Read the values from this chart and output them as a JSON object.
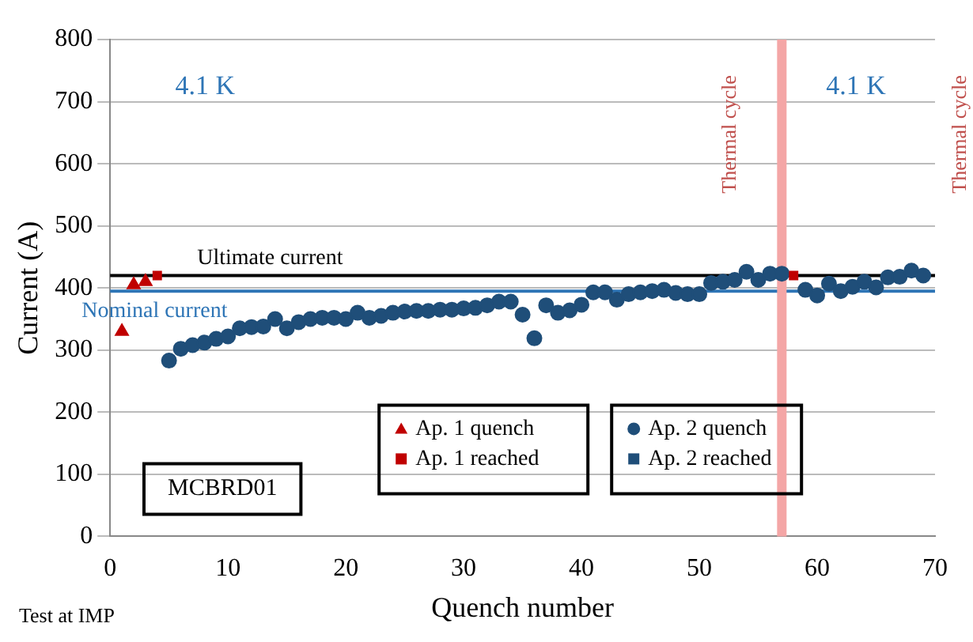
{
  "chart_data": {
    "type": "scatter",
    "xlabel": "Quench number",
    "ylabel": "Current (A)",
    "xlim": [
      0,
      70
    ],
    "xticks": [
      0,
      10,
      20,
      30,
      40,
      50,
      60,
      70
    ],
    "ylim": [
      0,
      800
    ],
    "yticks": [
      0,
      100,
      200,
      300,
      400,
      500,
      600,
      700,
      800
    ],
    "grid": "y",
    "legend": "bottom",
    "series": [
      {
        "name": "Ap. 1 quench",
        "color": "#c00000",
        "marker": "triangle",
        "x": [
          1,
          2,
          3
        ],
        "values": [
          330,
          405,
          410
        ]
      },
      {
        "name": "Ap. 1 reached",
        "color": "#c00000",
        "marker": "square",
        "x": [
          4,
          58
        ],
        "values": [
          420,
          420
        ]
      },
      {
        "name": "Ap. 2 quench",
        "color": "#1f4e79",
        "marker": "circle",
        "x": [
          5,
          6,
          7,
          8,
          9,
          10,
          11,
          12,
          13,
          14,
          15,
          16,
          17,
          18,
          19,
          20,
          21,
          22,
          23,
          24,
          25,
          26,
          27,
          28,
          29,
          30,
          31,
          32,
          33,
          34,
          35,
          36,
          37,
          38,
          39,
          40,
          41,
          42,
          43,
          44,
          45,
          46,
          47,
          48,
          49,
          50,
          51,
          52,
          53,
          54,
          55,
          56,
          57,
          59,
          60,
          61,
          62,
          63,
          64,
          65,
          66,
          67,
          68,
          69
        ],
        "values": [
          283,
          302,
          308,
          312,
          318,
          322,
          335,
          337,
          338,
          350,
          335,
          345,
          350,
          352,
          352,
          350,
          360,
          352,
          355,
          360,
          362,
          363,
          363,
          365,
          365,
          367,
          368,
          372,
          378,
          378,
          357,
          319,
          372,
          360,
          364,
          373,
          393,
          393,
          381,
          390,
          393,
          395,
          397,
          392,
          390,
          390,
          408,
          410,
          413,
          426,
          413,
          423,
          423,
          397,
          388,
          407,
          395,
          402,
          410,
          401,
          417,
          418,
          428,
          420
        ]
      },
      {
        "name": "Ap. 2 reached",
        "color": "#1f4e79",
        "marker": "square"
      }
    ],
    "ref_lines": [
      {
        "axis": "y",
        "value": 420,
        "label": "Ultimate current",
        "color": "#000000"
      },
      {
        "axis": "y",
        "value": 395,
        "label": "Nominal current",
        "color": "#2e75b6"
      },
      {
        "axis": "x",
        "value": 57,
        "color": "#f4a6a6"
      }
    ],
    "annotations": [
      "4.1 K",
      "4.1 K",
      "Thermal cycle",
      "Thermal cycle",
      "MCBRD01",
      "Test at IMP"
    ]
  }
}
